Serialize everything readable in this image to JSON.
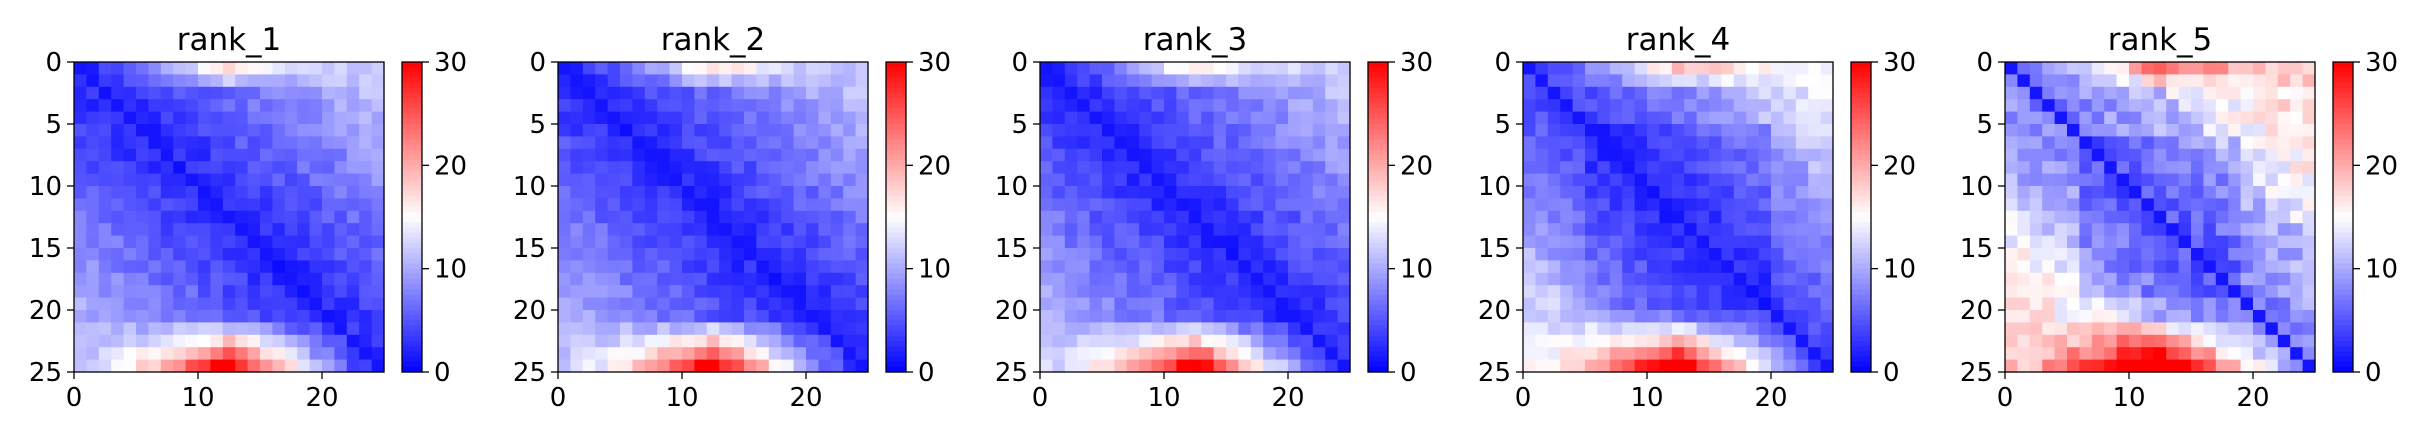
{
  "chart_data": [
    {
      "type": "heatmap",
      "title": "rank_1",
      "variant": 1,
      "size": 25,
      "xlim": [
        0,
        25
      ],
      "ylim": [
        25,
        0
      ],
      "x_ticks": [
        "0",
        "10",
        "20"
      ],
      "y_ticks": [
        "0",
        "5",
        "10",
        "15",
        "20",
        "25"
      ],
      "colorbar": {
        "min": 0,
        "max": 30,
        "ticks": [
          "0",
          "10",
          "20",
          "30"
        ],
        "colormap": "bwr"
      }
    },
    {
      "type": "heatmap",
      "title": "rank_2",
      "variant": 2,
      "size": 25,
      "xlim": [
        0,
        25
      ],
      "ylim": [
        25,
        0
      ],
      "x_ticks": [
        "0",
        "10",
        "20"
      ],
      "y_ticks": [
        "0",
        "5",
        "10",
        "15",
        "20",
        "25"
      ],
      "colorbar": {
        "min": 0,
        "max": 30,
        "ticks": [
          "0",
          "10",
          "20",
          "30"
        ],
        "colormap": "bwr"
      }
    },
    {
      "type": "heatmap",
      "title": "rank_3",
      "variant": 3,
      "size": 25,
      "xlim": [
        0,
        25
      ],
      "ylim": [
        25,
        0
      ],
      "x_ticks": [
        "0",
        "10",
        "20"
      ],
      "y_ticks": [
        "0",
        "5",
        "10",
        "15",
        "20",
        "25"
      ],
      "colorbar": {
        "min": 0,
        "max": 30,
        "ticks": [
          "0",
          "10",
          "20",
          "30"
        ],
        "colormap": "bwr"
      }
    },
    {
      "type": "heatmap",
      "title": "rank_4",
      "variant": 4,
      "size": 25,
      "xlim": [
        0,
        25
      ],
      "ylim": [
        25,
        0
      ],
      "x_ticks": [
        "0",
        "10",
        "20"
      ],
      "y_ticks": [
        "0",
        "5",
        "10",
        "15",
        "20",
        "25"
      ],
      "colorbar": {
        "min": 0,
        "max": 30,
        "ticks": [
          "0",
          "10",
          "20",
          "30"
        ],
        "colormap": "bwr"
      }
    },
    {
      "type": "heatmap",
      "title": "rank_5",
      "variant": 5,
      "size": 25,
      "xlim": [
        0,
        25
      ],
      "ylim": [
        25,
        0
      ],
      "x_ticks": [
        "0",
        "10",
        "20"
      ],
      "y_ticks": [
        "0",
        "5",
        "10",
        "15",
        "20",
        "25"
      ],
      "colorbar": {
        "min": 0,
        "max": 30,
        "ticks": [
          "0",
          "10",
          "20",
          "30"
        ],
        "colormap": "bwr"
      }
    }
  ]
}
